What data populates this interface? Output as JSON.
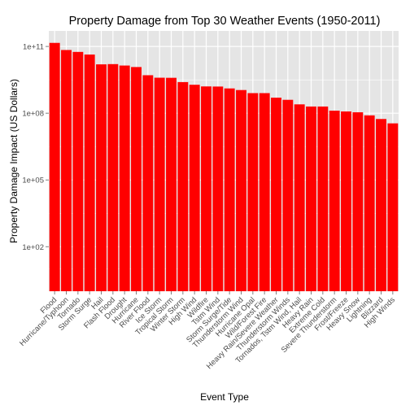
{
  "chart_data": {
    "type": "bar",
    "title": "Property Damage from Top 30 Weather Events (1950-2011)",
    "xlabel": "Event Type",
    "ylabel": "Property Damage Impact (US Dollars)",
    "y_scale": "log10",
    "ylim": [
      1,
      500000000000
    ],
    "y_ticks": [
      {
        "value": 100,
        "label": "1e+02"
      },
      {
        "value": 100000,
        "label": "1e+05"
      },
      {
        "value": 100000000,
        "label": "1e+08"
      },
      {
        "value": 100000000000,
        "label": "1e+11"
      }
    ],
    "grid": true,
    "bar_color": "#ff0000",
    "panel_color": "#e5e5e5",
    "grid_color": "#ffffff",
    "categories": [
      "Flood",
      "Hurricane/Typhoon",
      "Tornado",
      "Storm Surge",
      "Hail",
      "Flash Flood",
      "Drought",
      "Hurricane",
      "River Flood",
      "Ice Storm",
      "Tropical Storm",
      "Winter Storm",
      "High Wind",
      "Wildfire",
      "Tstm Wind",
      "Storm Surge/Tide",
      "Thunderstorm Wind",
      "Hurricane Opal",
      "Wild/Forest Fire",
      "Heavy Rain/Severe Weather",
      "Thunderstorm Winds",
      "Tornados, Tstm Wind, Hail",
      "Heavy Rain",
      "Extreme Cold",
      "Severe Thunderstorm",
      "Frost/Freeze",
      "Heavy Snow",
      "Lightning",
      "Blizzard",
      "High Winds"
    ],
    "values": [
      144700000000,
      69300000000,
      56900000000,
      43300000000,
      15700000000,
      16100000000,
      13900000000,
      11900000000,
      5100000000,
      3940000000,
      3900000000,
      2500000000,
      1900000000,
      1600000000,
      1580000000,
      1300000000,
      1100000000,
      800000000,
      800000000,
      500000000,
      400000000,
      250000000,
      200000000,
      200000000,
      130000000,
      120000000,
      110000000,
      80000000,
      55000000,
      35000000
    ]
  }
}
